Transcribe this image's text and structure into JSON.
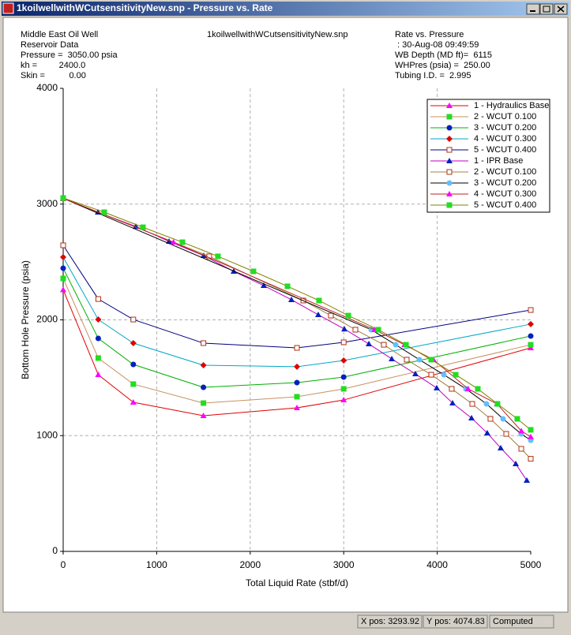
{
  "window": {
    "title": "1koilwellwithWCutsensitivityNew.snp - Pressure vs. Rate"
  },
  "header": {
    "left": [
      "Middle East Oil Well",
      "Reservoir Data",
      "Pressure =  3050.00 psia",
      "kh =         2400.0",
      "Skin =          0.00"
    ],
    "center": "1koilwellwithWCutsensitivityNew.snp",
    "right": [
      "Rate vs. Pressure",
      " : 30-Aug-08 09:49:59",
      "WB Depth (MD ft)=  6115",
      "WHPres (psia) =  250.00",
      "Tubing I.D. =  2.995"
    ]
  },
  "chart_data": {
    "type": "line",
    "x_label": "Total Liquid Rate (stbf/d)",
    "y_label": "Bottom Hole Pressure (psia)",
    "xlim": [
      0,
      5000
    ],
    "xticks": [
      0,
      1000,
      2000,
      3000,
      4000,
      5000
    ],
    "ylim": [
      0,
      4000
    ],
    "yticks": [
      0,
      1000,
      2000,
      3000,
      4000
    ],
    "grid": true,
    "legend": "top-right",
    "series": [
      {
        "name": "1 - Hydraulics Base",
        "color": "#e00000",
        "marker": "triangle",
        "marker_color": "#ff00ff",
        "x": [
          0,
          375,
          750,
          1500,
          2500,
          3000,
          5000
        ],
        "values": [
          2260,
          1526,
          1288,
          1172,
          1240,
          1308,
          1758
        ]
      },
      {
        "name": "2 - WCUT 0.100",
        "color": "#c89060",
        "marker": "square",
        "marker_color": "#22dd22",
        "x": [
          0,
          375,
          750,
          1500,
          2500,
          3000,
          5000
        ],
        "values": [
          2358,
          1670,
          1445,
          1281,
          1336,
          1404,
          1785
        ]
      },
      {
        "name": "3 - WCUT 0.200",
        "color": "#00b000",
        "marker": "circle",
        "marker_color": "#0020c0",
        "x": [
          0,
          375,
          750,
          1500,
          2500,
          3000,
          5000
        ],
        "values": [
          2446,
          1840,
          1615,
          1417,
          1458,
          1506,
          1860
        ]
      },
      {
        "name": "4 - WCUT 0.300",
        "color": "#00a8c8",
        "marker": "diamond",
        "marker_color": "#e00000",
        "x": [
          0,
          375,
          750,
          1500,
          2500,
          3000,
          5000
        ],
        "values": [
          2542,
          2003,
          1799,
          1608,
          1595,
          1649,
          1963
        ]
      },
      {
        "name": "5 - WCUT 0.400",
        "color": "#000080",
        "marker": "open-square",
        "marker_color": "#b03010",
        "x": [
          0,
          375,
          750,
          1500,
          2500,
          3000,
          5000
        ],
        "values": [
          2644,
          2180,
          2003,
          1799,
          1758,
          1806,
          2085
        ]
      },
      {
        "name": "1 - IPR Base",
        "color": "#c000c0",
        "marker": "triangle",
        "marker_color": "#0020c0",
        "x": [
          0,
          372,
          777,
          1132,
          1503,
          1824,
          2145,
          2441,
          2728,
          3007,
          3269,
          3514,
          3767,
          3995,
          4164,
          4367,
          4535,
          4679,
          4840,
          4958
        ],
        "values": [
          3050,
          2930,
          2807,
          2678,
          2555,
          2419,
          2296,
          2174,
          2044,
          1921,
          1792,
          1663,
          1533,
          1411,
          1281,
          1152,
          1022,
          893,
          756,
          613
        ]
      },
      {
        "name": "2 - WCUT 0.100",
        "color": "#a08040",
        "marker": "open-square",
        "marker_color": "#b03010",
        "x": [
          0,
          1562,
          2568,
          2863,
          3125,
          3429,
          3674,
          3936,
          4155,
          4375,
          4569,
          4738,
          4899,
          5000
        ],
        "values": [
          3050,
          2549,
          2167,
          2037,
          1915,
          1785,
          1656,
          1526,
          1404,
          1274,
          1145,
          1015,
          886,
          800
        ]
      },
      {
        "name": "3 - WCUT 0.200",
        "color": "#000000",
        "marker": "circle",
        "marker_color": "#60c0ff",
        "x": [
          0,
          3294,
          3556,
          3809,
          4071,
          4307,
          4527,
          4704,
          4899,
          5000
        ],
        "values": [
          3050,
          1915,
          1785,
          1656,
          1526,
          1404,
          1274,
          1145,
          1015,
          960
        ]
      },
      {
        "name": "4 - WCUT 0.300",
        "color": "#c02020",
        "marker": "triangle",
        "marker_color": "#ff00ff",
        "x": [
          0,
          1180,
          3330,
          3650,
          3960,
          4330,
          4640,
          4900,
          5000
        ],
        "values": [
          3050,
          2671,
          1915,
          1785,
          1656,
          1404,
          1274,
          1040,
          990
        ]
      },
      {
        "name": "5 - WCUT 0.400",
        "color": "#808000",
        "marker": "square",
        "marker_color": "#22dd22",
        "x": [
          0,
          439,
          853,
          1275,
          1655,
          2035,
          2399,
          2736,
          3049,
          3370,
          3666,
          3936,
          4198,
          4434,
          4645,
          4856,
          5000
        ],
        "values": [
          3053,
          2930,
          2800,
          2671,
          2549,
          2419,
          2290,
          2167,
          2037,
          1915,
          1785,
          1656,
          1526,
          1404,
          1274,
          1145,
          1050
        ]
      }
    ]
  },
  "status_bar": {
    "x_pos": "X pos: 3293.92",
    "y_pos": "Y pos: 4074.83",
    "state": "Computed"
  }
}
